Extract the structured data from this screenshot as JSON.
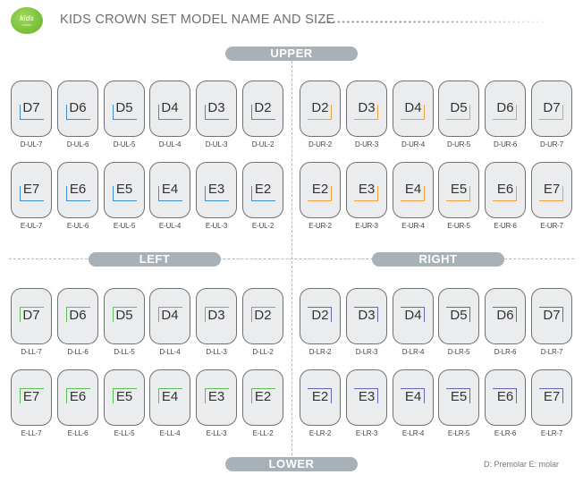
{
  "header": {
    "logo_line1": "kids",
    "logo_line2": "crown",
    "title": "KIDS CROWN SET MODEL NAME AND SIZE"
  },
  "sections": {
    "upper": "UPPER",
    "lower": "LOWER",
    "left": "LEFT",
    "right": "RIGHT"
  },
  "colors": {
    "upper_left": "#3f8fd0",
    "upper_right": "#f0a040",
    "lower_left": "#5cc05a",
    "lower_right": "#6a64b8",
    "pill": "#a8b0b8",
    "card_bg": "#ebecee"
  },
  "quadrants": {
    "upper_left": {
      "rows": [
        [
          {
            "code": "D7",
            "label": "D-UL-7"
          },
          {
            "code": "D6",
            "label": "D-UL-6"
          },
          {
            "code": "D5",
            "label": "D-UL-5"
          },
          {
            "code": "D4",
            "label": "D-UL-4"
          },
          {
            "code": "D3",
            "label": "D-UL-3"
          },
          {
            "code": "D2",
            "label": "D-UL-2"
          }
        ],
        [
          {
            "code": "E7",
            "label": "E-UL-7"
          },
          {
            "code": "E6",
            "label": "E-UL-6"
          },
          {
            "code": "E5",
            "label": "E-UL-5"
          },
          {
            "code": "E4",
            "label": "E-UL-4"
          },
          {
            "code": "E3",
            "label": "E-UL-3"
          },
          {
            "code": "E2",
            "label": "E-UL-2"
          }
        ]
      ]
    },
    "upper_right": {
      "rows": [
        [
          {
            "code": "D2",
            "label": "D-UR-2"
          },
          {
            "code": "D3",
            "label": "D-UR-3"
          },
          {
            "code": "D4",
            "label": "D-UR-4"
          },
          {
            "code": "D5",
            "label": "D-UR-5"
          },
          {
            "code": "D6",
            "label": "D-UR-6"
          },
          {
            "code": "D7",
            "label": "D-UR-7"
          }
        ],
        [
          {
            "code": "E2",
            "label": "E-UR-2"
          },
          {
            "code": "E3",
            "label": "E-UR-3"
          },
          {
            "code": "E4",
            "label": "E-UR-4"
          },
          {
            "code": "E5",
            "label": "E-UR-5"
          },
          {
            "code": "E6",
            "label": "E-UR-6"
          },
          {
            "code": "E7",
            "label": "E-UR-7"
          }
        ]
      ]
    },
    "lower_left": {
      "rows": [
        [
          {
            "code": "D7",
            "label": "D-LL-7"
          },
          {
            "code": "D6",
            "label": "D-LL-6"
          },
          {
            "code": "D5",
            "label": "D-LL-5"
          },
          {
            "code": "D4",
            "label": "D-LL-4"
          },
          {
            "code": "D3",
            "label": "D-LL-3"
          },
          {
            "code": "D2",
            "label": "D-LL-2"
          }
        ],
        [
          {
            "code": "E7",
            "label": "E-LL-7"
          },
          {
            "code": "E6",
            "label": "E-LL-6"
          },
          {
            "code": "E5",
            "label": "E-LL-5"
          },
          {
            "code": "E4",
            "label": "E-LL-4"
          },
          {
            "code": "E3",
            "label": "E-LL-3"
          },
          {
            "code": "E2",
            "label": "E-LL-2"
          }
        ]
      ]
    },
    "lower_right": {
      "rows": [
        [
          {
            "code": "D2",
            "label": "D-LR-2"
          },
          {
            "code": "D3",
            "label": "D-LR-3"
          },
          {
            "code": "D4",
            "label": "D-LR-4"
          },
          {
            "code": "D5",
            "label": "D-LR-5"
          },
          {
            "code": "D6",
            "label": "D-LR-6"
          },
          {
            "code": "D7",
            "label": "D-LR-7"
          }
        ],
        [
          {
            "code": "E2",
            "label": "E-LR-2"
          },
          {
            "code": "E3",
            "label": "E-LR-3"
          },
          {
            "code": "E4",
            "label": "E-LR-4"
          },
          {
            "code": "E5",
            "label": "E-LR-5"
          },
          {
            "code": "E6",
            "label": "E-LR-6"
          },
          {
            "code": "E7",
            "label": "E-LR-7"
          }
        ]
      ]
    }
  },
  "legend": "D: Premolar  E: molar"
}
